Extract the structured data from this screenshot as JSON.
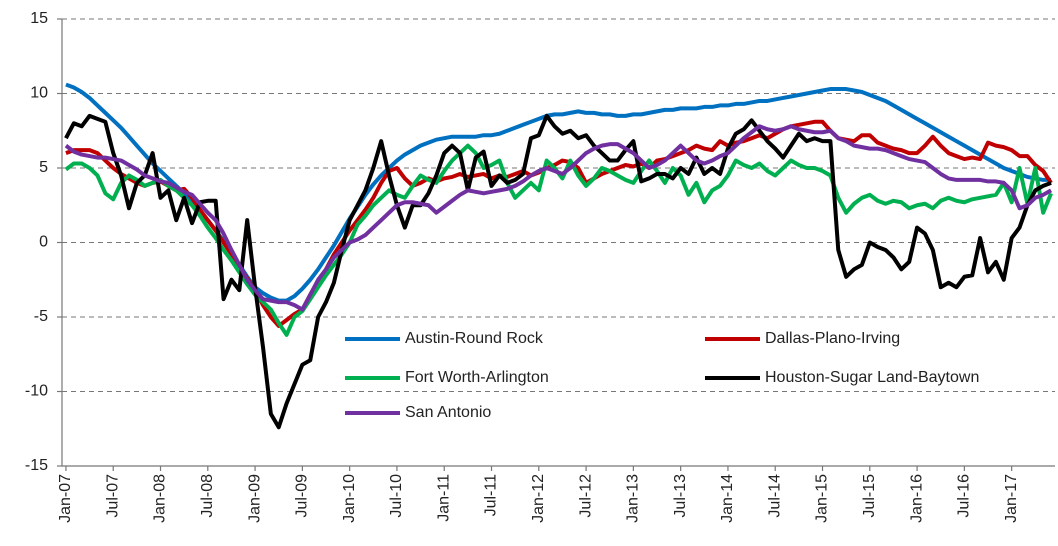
{
  "chart_data": {
    "type": "line",
    "categories": [
      "Jan-07",
      null,
      null,
      null,
      null,
      null,
      "Jul-07",
      null,
      null,
      null,
      null,
      null,
      "Jan-08",
      null,
      null,
      null,
      null,
      null,
      "Jul-08",
      null,
      null,
      null,
      null,
      null,
      "Jan-09",
      null,
      null,
      null,
      null,
      null,
      "Jul-09",
      null,
      null,
      null,
      null,
      null,
      "Jan-10",
      null,
      null,
      null,
      null,
      null,
      "Jul-10",
      null,
      null,
      null,
      null,
      null,
      "Jan-11",
      null,
      null,
      null,
      null,
      null,
      "Jul-11",
      null,
      null,
      null,
      null,
      null,
      "Jan-12",
      null,
      null,
      null,
      null,
      null,
      "Jul-12",
      null,
      null,
      null,
      null,
      null,
      "Jan-13",
      null,
      null,
      null,
      null,
      null,
      "Jul-13",
      null,
      null,
      null,
      null,
      null,
      "Jan-14",
      null,
      null,
      null,
      null,
      null,
      "Jul-14",
      null,
      null,
      null,
      null,
      null,
      "Jan-15",
      null,
      null,
      null,
      null,
      null,
      "Jul-15",
      null,
      null,
      null,
      null,
      null,
      "Jan-16",
      null,
      null,
      null,
      null,
      null,
      "Jul-16",
      null,
      null,
      null,
      null,
      null,
      "Jan-17",
      null,
      null,
      null,
      null,
      null
    ],
    "series": [
      {
        "name": "Austin-Round Rock",
        "color": "#0070c0",
        "values": [
          10.6,
          10.4,
          10.1,
          9.7,
          9.2,
          8.7,
          8.2,
          7.7,
          7.1,
          6.5,
          5.9,
          5.3,
          4.8,
          4.3,
          3.8,
          3.3,
          2.7,
          2.1,
          1.5,
          0.8,
          0.1,
          -0.7,
          -1.5,
          -2.3,
          -3.0,
          -3.4,
          -3.7,
          -3.9,
          -3.9,
          -3.6,
          -3.1,
          -2.5,
          -1.8,
          -1.0,
          -0.2,
          0.7,
          1.6,
          2.4,
          3.2,
          3.9,
          4.5,
          5.0,
          5.5,
          5.9,
          6.2,
          6.5,
          6.7,
          6.9,
          7.0,
          7.1,
          7.1,
          7.1,
          7.1,
          7.2,
          7.2,
          7.3,
          7.5,
          7.7,
          7.9,
          8.1,
          8.3,
          8.5,
          8.6,
          8.6,
          8.7,
          8.8,
          8.7,
          8.7,
          8.6,
          8.6,
          8.5,
          8.5,
          8.6,
          8.6,
          8.7,
          8.8,
          8.9,
          8.9,
          9.0,
          9.0,
          9.0,
          9.1,
          9.1,
          9.2,
          9.2,
          9.3,
          9.3,
          9.4,
          9.5,
          9.5,
          9.6,
          9.7,
          9.8,
          9.9,
          10.0,
          10.1,
          10.2,
          10.3,
          10.3,
          10.3,
          10.2,
          10.1,
          9.9,
          9.7,
          9.5,
          9.2,
          8.9,
          8.6,
          8.3,
          8.0,
          7.7,
          7.4,
          7.1,
          6.8,
          6.5,
          6.2,
          5.9,
          5.6,
          5.3,
          5.0,
          4.8,
          4.6,
          4.4,
          4.3,
          4.2,
          4.2
        ]
      },
      {
        "name": "Dallas-Plano-Irving",
        "color": "#c00000",
        "values": [
          6.0,
          6.2,
          6.2,
          6.2,
          6.0,
          5.5,
          5.0,
          4.6,
          4.3,
          4.0,
          3.8,
          4.0,
          4.1,
          3.8,
          3.5,
          3.6,
          3.0,
          2.2,
          1.5,
          0.8,
          0.0,
          -0.8,
          -1.6,
          -2.4,
          -3.2,
          -4.2,
          -5.0,
          -5.6,
          -5.2,
          -4.8,
          -4.5,
          -3.5,
          -2.6,
          -1.8,
          -0.8,
          0.0,
          0.8,
          1.5,
          2.2,
          3.0,
          4.0,
          4.8,
          5.0,
          4.3,
          3.8,
          4.0,
          4.3,
          4.1,
          4.3,
          4.4,
          4.6,
          4.4,
          4.5,
          4.6,
          4.3,
          4.5,
          4.4,
          4.6,
          4.8,
          4.5,
          4.7,
          5.0,
          5.2,
          5.5,
          5.4,
          5.0,
          4.0,
          4.3,
          4.6,
          4.8,
          5.0,
          5.2,
          5.1,
          5.3,
          5.0,
          5.5,
          5.6,
          5.8,
          6.0,
          6.2,
          6.5,
          6.3,
          6.2,
          6.8,
          6.5,
          6.7,
          6.8,
          7.0,
          7.2,
          7.0,
          7.3,
          7.6,
          7.8,
          7.9,
          8.0,
          8.1,
          8.1,
          7.5,
          7.0,
          6.9,
          6.8,
          7.2,
          7.2,
          6.7,
          6.5,
          6.3,
          6.2,
          6.0,
          6.0,
          6.5,
          7.1,
          6.5,
          6.0,
          5.8,
          5.6,
          5.7,
          5.6,
          6.7,
          6.5,
          6.4,
          6.2,
          5.8,
          5.8,
          5.2,
          4.8,
          4.0
        ]
      },
      {
        "name": "Fort Worth-Arlington",
        "color": "#00b050",
        "values": [
          4.9,
          5.3,
          5.3,
          5.0,
          4.5,
          3.3,
          2.9,
          4.0,
          4.5,
          4.2,
          3.8,
          4.0,
          4.2,
          3.8,
          3.5,
          3.0,
          2.5,
          1.8,
          1.0,
          0.3,
          -0.5,
          -1.2,
          -2.0,
          -2.8,
          -3.5,
          -4.0,
          -4.5,
          -5.4,
          -6.2,
          -5.0,
          -4.6,
          -3.8,
          -3.0,
          -2.2,
          -1.5,
          -0.8,
          0.0,
          1.2,
          1.8,
          2.5,
          3.0,
          3.5,
          3.2,
          3.0,
          3.8,
          4.5,
          4.2,
          4.0,
          4.8,
          5.5,
          6.0,
          6.5,
          6.0,
          5.0,
          5.2,
          5.5,
          4.0,
          3.0,
          3.5,
          4.0,
          3.5,
          5.5,
          5.0,
          4.3,
          5.5,
          4.5,
          3.8,
          4.3,
          5.0,
          4.8,
          4.5,
          4.2,
          4.0,
          4.8,
          5.5,
          4.8,
          4.0,
          5.0,
          4.5,
          3.2,
          4.0,
          2.7,
          3.5,
          3.8,
          4.5,
          5.5,
          5.2,
          5.0,
          5.3,
          4.8,
          4.5,
          5.0,
          5.5,
          5.2,
          5.0,
          5.0,
          4.8,
          4.5,
          3.0,
          2.0,
          2.6,
          3.0,
          3.2,
          2.8,
          2.6,
          2.8,
          2.7,
          2.3,
          2.5,
          2.6,
          2.3,
          2.8,
          3.0,
          2.8,
          2.7,
          2.9,
          3.0,
          3.1,
          3.2,
          4.0,
          2.7,
          5.0,
          2.6,
          5.0,
          2.0,
          3.3
        ]
      },
      {
        "name": "Houston-Sugar Land-Baytown",
        "color": "#000000",
        "values": [
          7.0,
          8.0,
          7.8,
          8.5,
          8.3,
          8.1,
          6.0,
          4.5,
          2.3,
          4.0,
          4.5,
          6.0,
          3.0,
          3.5,
          1.5,
          3.0,
          1.3,
          2.7,
          2.8,
          2.8,
          -3.8,
          -2.5,
          -3.2,
          1.5,
          -3.0,
          -7.0,
          -11.5,
          -12.4,
          -10.8,
          -9.5,
          -8.2,
          -7.9,
          -5.0,
          -4.0,
          -2.7,
          -0.5,
          1.5,
          2.5,
          3.5,
          5.0,
          6.8,
          4.5,
          2.5,
          1.0,
          2.5,
          2.5,
          3.3,
          4.5,
          6.0,
          6.5,
          6.0,
          3.5,
          5.7,
          6.1,
          3.8,
          4.5,
          4.0,
          4.2,
          4.6,
          7.0,
          7.2,
          8.5,
          7.8,
          7.3,
          7.5,
          7.0,
          7.2,
          6.5,
          6.0,
          5.5,
          5.5,
          6.2,
          6.8,
          4.1,
          4.3,
          4.6,
          4.6,
          4.3,
          5.0,
          4.6,
          5.7,
          4.6,
          5.0,
          4.6,
          6.3,
          7.3,
          7.6,
          8.2,
          7.5,
          6.8,
          6.3,
          5.7,
          6.5,
          7.3,
          6.8,
          7.0,
          6.8,
          6.8,
          -0.5,
          -2.3,
          -1.8,
          -1.5,
          0.0,
          -0.3,
          -0.5,
          -1.0,
          -1.8,
          -1.3,
          1.0,
          0.6,
          -0.5,
          -3.0,
          -2.7,
          -3.0,
          -2.3,
          -2.2,
          0.3,
          -2.0,
          -1.3,
          -2.5,
          0.3,
          1.0,
          2.5,
          3.5,
          3.8,
          4.0
        ]
      },
      {
        "name": "San Antonio",
        "color": "#7030a0",
        "values": [
          6.5,
          6.1,
          5.9,
          5.8,
          5.7,
          5.7,
          5.6,
          5.5,
          5.2,
          4.9,
          4.5,
          4.3,
          4.1,
          4.0,
          3.7,
          3.4,
          3.2,
          2.6,
          2.0,
          1.5,
          0.6,
          -0.5,
          -1.5,
          -2.5,
          -3.2,
          -3.8,
          -3.9,
          -4.0,
          -4.0,
          -4.2,
          -4.5,
          -3.5,
          -2.5,
          -1.8,
          -1.0,
          -0.5,
          0.0,
          0.2,
          0.5,
          1.0,
          1.5,
          2.0,
          2.5,
          2.7,
          2.7,
          2.6,
          2.5,
          2.0,
          2.4,
          2.8,
          3.2,
          3.5,
          3.4,
          3.3,
          3.4,
          3.5,
          3.6,
          3.8,
          4.1,
          4.5,
          4.8,
          5.0,
          4.8,
          4.6,
          5.0,
          5.5,
          6.0,
          6.3,
          6.5,
          6.6,
          6.6,
          6.3,
          6.0,
          5.5,
          5.0,
          5.2,
          5.5,
          6.0,
          6.5,
          6.0,
          5.5,
          5.3,
          5.5,
          5.8,
          6.0,
          6.5,
          7.0,
          7.4,
          7.8,
          7.6,
          7.5,
          7.6,
          7.8,
          7.6,
          7.5,
          7.4,
          7.4,
          7.5,
          7.0,
          6.8,
          6.5,
          6.4,
          6.3,
          6.3,
          6.2,
          6.0,
          5.8,
          5.6,
          5.5,
          5.4,
          5.0,
          4.6,
          4.3,
          4.2,
          4.2,
          4.2,
          4.2,
          4.1,
          4.1,
          4.0,
          3.5,
          2.3,
          2.5,
          3.0,
          3.2,
          3.5
        ]
      }
    ],
    "ylim": [
      -15,
      15
    ],
    "yticks": [
      -15,
      -10,
      -5,
      0,
      5,
      10,
      15
    ],
    "grid": true
  }
}
